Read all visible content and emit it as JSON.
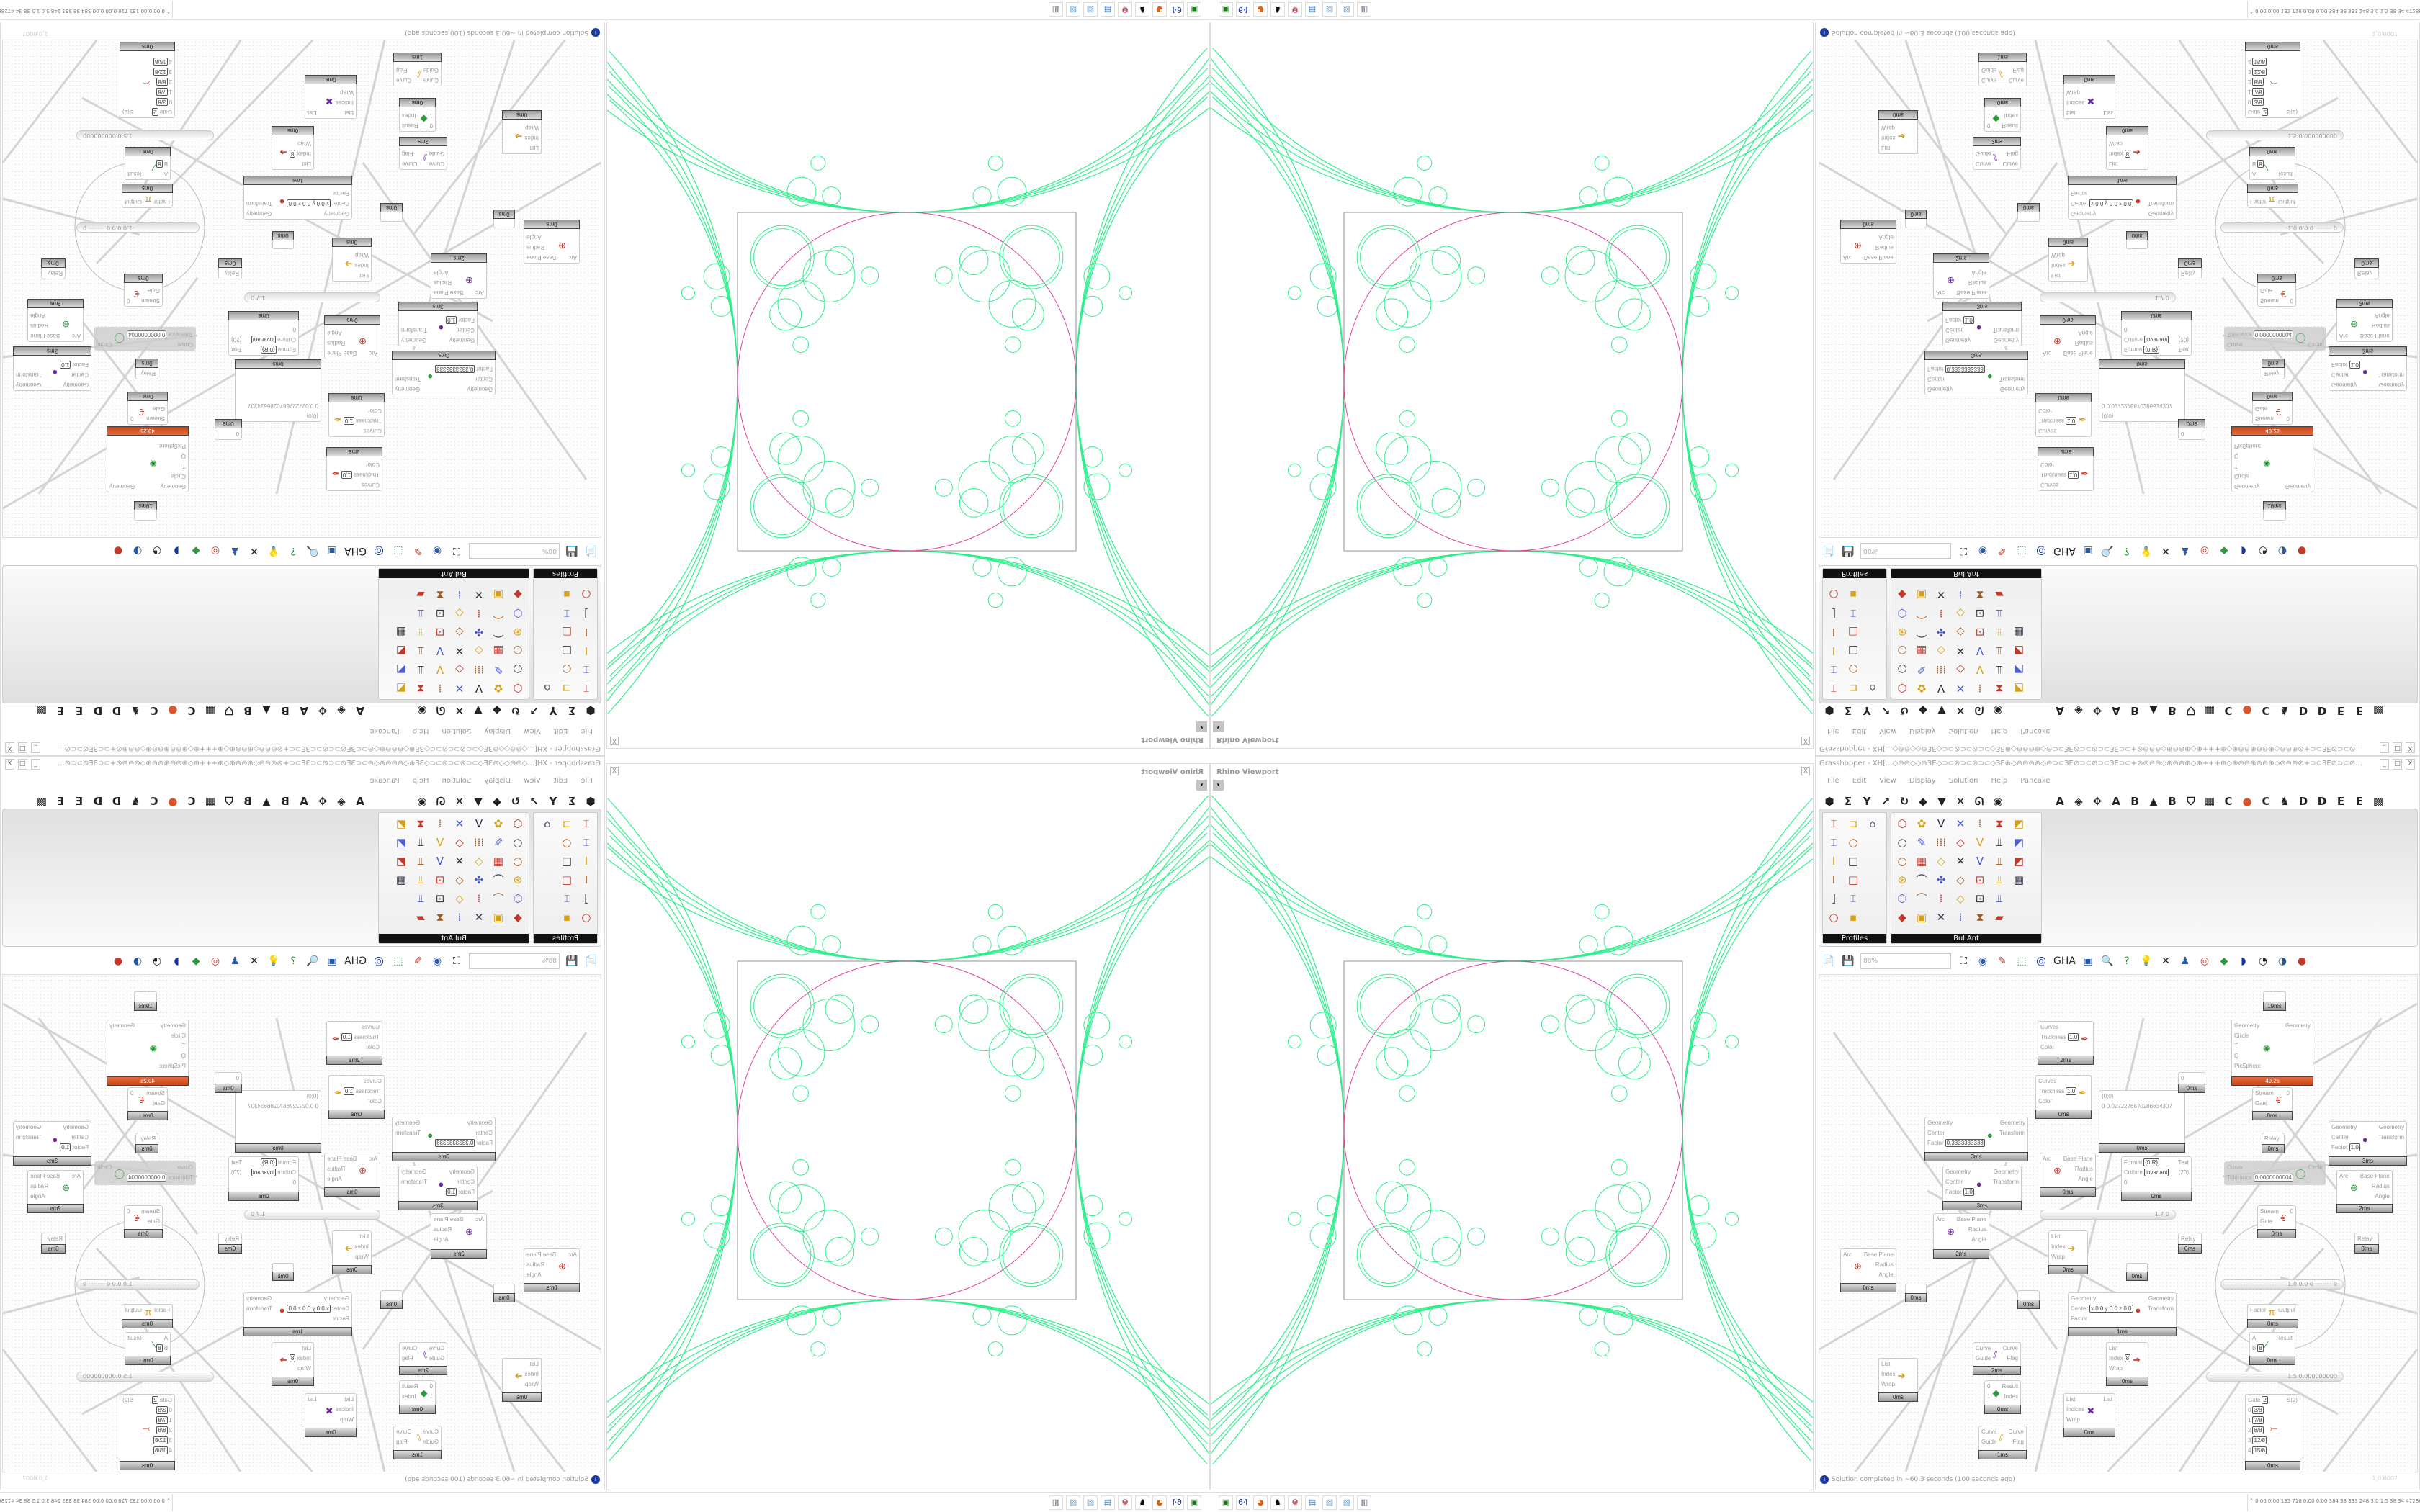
{
  "viewport": {
    "title": "Rhino Viewport",
    "close_label": "X",
    "dropdown_label": "▾"
  },
  "colors": {
    "curve_green": "#2fef8d",
    "circle_pink": "#e0409e",
    "solver_orange": "#d4562a",
    "info_blue": "#1a3aa0"
  },
  "grasshopper": {
    "title": "Grasshopper - XH[...◇⊖⊖◇◇⊕ЗЕ◇⊃⊂⊘⊃⊂⊘⊃⊂◇ЗЕ⊕◇⊖⊖⊖⊕◇⊖⊃⊂ЗЕ⊘⊃⊂⊘⊃⊂ЗЕ⊃⊂+⊘⊕⊖⊖◇⊕⊖⊖⊕◇⊕+++⊕◇⊕⊖⊖⊕⊖⊖⊕◇⊖⊖⊕⊘+⊃⊂ЗЕ⊘⊃⊂⊘...",
    "window_buttons": [
      "_",
      "□",
      "X"
    ],
    "menu": [
      "File",
      "Edit",
      "View",
      "Display",
      "Solution",
      "Help",
      "Pancake"
    ],
    "tab_icons": [
      "hexagon-icon",
      "sigma-icon",
      "vector-icon",
      "arrow-icon",
      "loop-icon",
      "surface-icon",
      "mesh-icon",
      "intersect-icon",
      "transform-icon",
      "eye-icon"
    ],
    "tab_glyphs": [
      "⬢",
      "Σ",
      "Y",
      "↗",
      "↻",
      "◆",
      "▼",
      "✕",
      "ᘏ",
      "◉",
      "A",
      "◈",
      "✥",
      "A",
      "B",
      "▲",
      "B",
      "⛉",
      "▦",
      "C",
      "●",
      "C",
      "♞",
      "D",
      "D",
      "E",
      "E",
      "▩"
    ],
    "panels": [
      {
        "label": "Profiles",
        "icons": [
          "⌶",
          "⊐",
          "⌂",
          "⌶",
          "○",
          "",
          "I",
          "□",
          "",
          "I",
          "□",
          "",
          "⌋",
          "⌶",
          "",
          "○",
          "▪",
          ""
        ]
      },
      {
        "label": "BullAnt",
        "icons": [
          "⬡",
          "✿",
          "V",
          "✕",
          "⁞",
          "⧗",
          "◩",
          "○",
          "✎",
          "⁞⁞⁞",
          "◇",
          "V",
          "⫫",
          "◩",
          "○",
          "▦",
          "◇",
          "✕",
          "V",
          "⫫",
          "◩",
          "⊛",
          "⌒",
          "✣",
          "◇",
          "⊡",
          "⫫",
          "▦",
          "⬡",
          "⌒",
          "⁞",
          "◇",
          "⊡",
          "⫫",
          "",
          "◆",
          "▣",
          "✕",
          "⁞",
          "⧗",
          "▰",
          ""
        ]
      }
    ],
    "canvas_toolbar": {
      "zoom_value": "88%",
      "icons": [
        "📄",
        "💾",
        "⛶",
        "◉",
        "✎",
        "⬚",
        "@",
        "GHA",
        "▣",
        "🔍",
        "?",
        "💡",
        "✕",
        "♟",
        "◎",
        "◆",
        "◗",
        "◔",
        "◑",
        "●"
      ]
    },
    "nodes": [
      {
        "id": "n1",
        "inputs": [
          "Curves",
          "Thickness",
          "Color"
        ],
        "values": {
          "Thickness": "1.0"
        },
        "outputs": [],
        "icon": "✒",
        "footer": "2ms"
      },
      {
        "id": "n2",
        "inputs": [
          "Curves",
          "Thickness",
          "Color"
        ],
        "values": {
          "Thickness": "1.0"
        },
        "outputs": [],
        "icon": "✒",
        "footer": "0ms"
      },
      {
        "id": "n3",
        "inputs": [
          "Geometry",
          "Center",
          "Factor"
        ],
        "values": {
          "Factor": "0.3333333333"
        },
        "outputs": [
          "Geometry",
          "Transform"
        ],
        "icon": "●",
        "footer": "3ms"
      },
      {
        "id": "n4",
        "inputs": [
          "Geometry",
          "Center",
          "Factor"
        ],
        "values": {
          "Factor": "1.0"
        },
        "outputs": [
          "Geometry",
          "Transform"
        ],
        "icon": "●",
        "footer": "3ms"
      },
      {
        "id": "n5",
        "inputs": [
          "{0;0}",
          "0  0.0272276870286634307"
        ],
        "values": {},
        "outputs": [],
        "icon": "",
        "footer": "0ms"
      },
      {
        "id": "n6",
        "inputs": [
          "0"
        ],
        "values": {},
        "outputs": [],
        "icon": "",
        "footer": "0ms"
      },
      {
        "id": "n7",
        "inputs": [
          "Geometry",
          "Circle",
          "T",
          "Q",
          "PixSphere"
        ],
        "values": {},
        "outputs": [
          "Geometry"
        ],
        "icon": "✺",
        "footer": "49.2s"
      },
      {
        "id": "n8",
        "inputs": [],
        "values": {},
        "outputs": [],
        "icon": "",
        "footer": "19ms"
      },
      {
        "id": "n9",
        "inputs": [
          "Stream",
          "Gate"
        ],
        "values": {},
        "outputs": [
          "0"
        ],
        "icon": "€",
        "footer": "0ms"
      },
      {
        "id": "n10",
        "inputs": [
          "Relay"
        ],
        "values": {},
        "outputs": [],
        "icon": "",
        "footer": "0ms"
      },
      {
        "id": "n11",
        "inputs": [
          "Curve",
          "Tolerance"
        ],
        "values": {
          "Tolerance": "0.0000000004"
        },
        "outputs": [
          "Circle"
        ],
        "icon": "◯",
        "footer": ""
      },
      {
        "id": "n12",
        "inputs": [
          "Geometry",
          "Center",
          "Factor"
        ],
        "values": {
          "Factor": "1.0"
        },
        "outputs": [
          "Geometry",
          "Transform"
        ],
        "icon": "●",
        "footer": "3ms"
      },
      {
        "id": "n13",
        "inputs": [
          "Arc"
        ],
        "values": {},
        "outputs": [
          "Base Plane",
          "Radius",
          "Angle"
        ],
        "icon": "⊕",
        "footer": "0ms"
      },
      {
        "id": "n14",
        "inputs": [
          "Format",
          "Culture",
          "0"
        ],
        "values": {
          "Format": "{0:R}",
          "Culture": "Invariant"
        },
        "outputs": [
          "Text",
          "(20)"
        ],
        "icon": "",
        "footer": "0ms"
      },
      {
        "id": "n15",
        "inputs": [
          "Arc"
        ],
        "values": {},
        "outputs": [
          "Base Plane",
          "Radius",
          "Angle"
        ],
        "icon": "⊕",
        "footer": "2ms"
      },
      {
        "id": "n17",
        "inputs": [
          "Arc"
        ],
        "values": {},
        "outputs": [
          "Base Plane",
          "Radius",
          "Angle"
        ],
        "icon": "⊕",
        "footer": "2ms"
      },
      {
        "id": "n18",
        "inputs": [
          "Arc"
        ],
        "values": {},
        "outputs": [
          "Base Plane",
          "Radius",
          "Angle"
        ],
        "icon": "⊕",
        "footer": "0ms"
      },
      {
        "id": "n19",
        "inputs": [
          "List",
          "Index",
          "Wrap"
        ],
        "values": {},
        "outputs": [],
        "icon": "➔",
        "footer": "0ms"
      },
      {
        "id": "n20",
        "inputs": [
          "Relay"
        ],
        "values": {},
        "outputs": [],
        "icon": "",
        "footer": "0ms"
      },
      {
        "id": "n21",
        "inputs": [
          "Relay"
        ],
        "values": {},
        "outputs": [],
        "icon": "",
        "footer": "0ms"
      },
      {
        "id": "n22",
        "inputs": [
          "Stream",
          "Gate"
        ],
        "values": {},
        "outputs": [
          "0"
        ],
        "icon": "€",
        "footer": "0ms"
      },
      {
        "id": "n23",
        "inputs": [],
        "values": {},
        "outputs": [],
        "icon": "",
        "footer": "0ms"
      },
      {
        "id": "n24",
        "inputs": [],
        "values": {},
        "outputs": [],
        "icon": "",
        "footer": "0ms"
      },
      {
        "id": "n25",
        "inputs": [],
        "values": {},
        "outputs": [],
        "icon": "",
        "footer": "0ms"
      },
      {
        "id": "n27",
        "inputs": [
          "Geometry",
          "Center",
          "Factor"
        ],
        "values": {
          "Center": "x 0.0 y 0.0 z 0.0"
        },
        "outputs": [
          "Geometry",
          "Transform"
        ],
        "icon": "●",
        "footer": "1ms"
      },
      {
        "id": "n28",
        "inputs": [
          "Factor"
        ],
        "values": {},
        "outputs": [
          "Output"
        ],
        "icon": "π",
        "footer": "0ms"
      },
      {
        "id": "n29",
        "inputs": [
          "A",
          "B"
        ],
        "values": {
          "B": "8"
        },
        "outputs": [
          "Result"
        ],
        "icon": "⁄",
        "footer": "0ms"
      },
      {
        "id": "n30",
        "inputs": [
          "Curve",
          "Guide"
        ],
        "values": {},
        "outputs": [
          "Curve",
          "Flag"
        ],
        "icon": "⫽",
        "footer": "2ms"
      },
      {
        "id": "n31",
        "inputs": [
          "List",
          "Index",
          "Wrap"
        ],
        "values": {
          "Index": "8"
        },
        "outputs": [],
        "icon": "➔",
        "footer": "0ms"
      },
      {
        "id": "n32",
        "inputs": [
          "List",
          "Index",
          "Wrap"
        ],
        "values": {},
        "outputs": [],
        "icon": "➔",
        "footer": "0ms"
      },
      {
        "id": "n34",
        "inputs": [
          "0",
          "1"
        ],
        "values": {},
        "outputs": [
          "Result",
          "Index"
        ],
        "icon": "◆",
        "footer": "0ms"
      },
      {
        "id": "n35",
        "inputs": [
          "List",
          "Indices",
          "Wrap"
        ],
        "values": {},
        "outputs": [
          "List"
        ],
        "icon": "✖",
        "footer": "0ms"
      },
      {
        "id": "n36",
        "inputs": [
          "Gate",
          "0",
          "1",
          "2",
          "3",
          "4"
        ],
        "values": {
          "Gate": "2",
          "0": "3/8",
          "1": "7/8",
          "2": "8/8",
          "3": "12/8",
          "4": "15/8"
        },
        "outputs": [
          "S(2)"
        ],
        "icon": "⤚",
        "footer": "0ms"
      },
      {
        "id": "n37",
        "inputs": [
          "Curve",
          "Guide"
        ],
        "values": {},
        "outputs": [
          "Curve",
          "Flag"
        ],
        "icon": "⫽",
        "footer": "1ms"
      }
    ],
    "sliders": [
      {
        "id": "s1",
        "text": "1.7  0"
      },
      {
        "id": "s2",
        "text": "-1.0  0.0  0  ·········  0"
      },
      {
        "id": "s3",
        "text": "1.5  0.000000000"
      }
    ],
    "status": {
      "icon": "info-icon",
      "text": "Solution completed in ~60.3 seconds (100 seconds ago)",
      "tolerance": "1,0.0007"
    }
  },
  "taskbar": {
    "apps": [
      "▣",
      "64",
      "◕",
      "♞",
      "⚙",
      "▤",
      "▧",
      "▧",
      "▥"
    ],
    "tray_expand": "^",
    "tray_stats": "0.00 0.00 135 716 0.00 0.00 384 38 333 248 3.0 1.5 38 34 47286301"
  }
}
